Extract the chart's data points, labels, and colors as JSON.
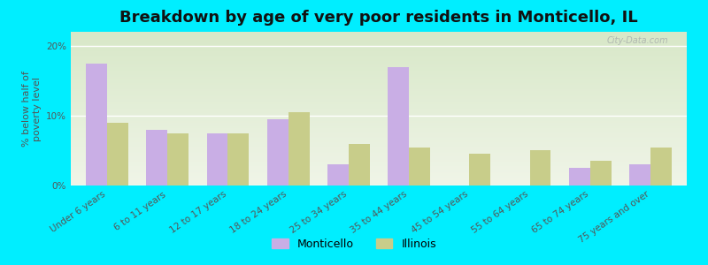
{
  "title": "Breakdown by age of very poor residents in Monticello, IL",
  "ylabel": "% below half of\npoverty level",
  "categories": [
    "Under 6 years",
    "6 to 11 years",
    "12 to 17 years",
    "18 to 24 years",
    "25 to 34 years",
    "35 to 44 years",
    "45 to 54 years",
    "55 to 64 years",
    "65 to 74 years",
    "75 years and over"
  ],
  "monticello": [
    17.5,
    8.0,
    7.5,
    9.5,
    3.0,
    17.0,
    0.0,
    0.0,
    2.5,
    3.0
  ],
  "illinois": [
    9.0,
    7.5,
    7.5,
    10.5,
    6.0,
    5.5,
    4.5,
    5.0,
    3.5,
    5.5
  ],
  "monticello_color": "#c9aee5",
  "illinois_color": "#c8cd8a",
  "background_color": "#00eeff",
  "plot_bg_top": "#d8e8c8",
  "plot_bg_bottom": "#f0f5e8",
  "ylim": [
    0,
    22
  ],
  "yticks": [
    0,
    10,
    20
  ],
  "ytick_labels": [
    "0%",
    "10%",
    "20%"
  ],
  "bar_width": 0.35,
  "title_fontsize": 13,
  "axis_label_fontsize": 8,
  "tick_fontsize": 7.5,
  "legend_fontsize": 9,
  "watermark": "City-Data.com"
}
